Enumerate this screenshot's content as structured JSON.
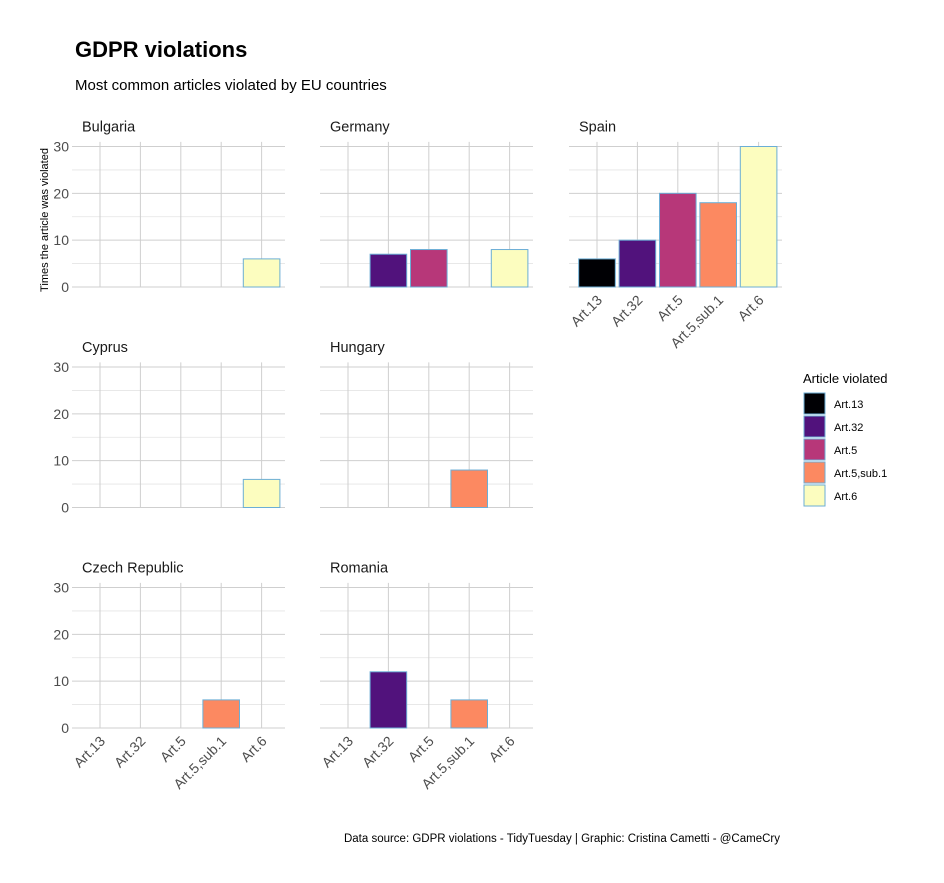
{
  "chart_data": {
    "type": "bar",
    "title": "GDPR violations",
    "subtitle": "Most common articles violated by EU countries",
    "ylabel": "Times the article was violated",
    "xlabel": "",
    "ylim": [
      0,
      31
    ],
    "yticks": [
      0,
      10,
      20,
      30
    ],
    "grid": true,
    "categories": [
      "Art.13",
      "Art.32",
      "Art.5",
      "Art.5,sub.1",
      "Art.6"
    ],
    "colors": {
      "Art.13": "#000004",
      "Art.32": "#51127c",
      "Art.5": "#b73779",
      "Art.5,sub.1": "#fc8961",
      "Art.6": "#fcfdbf"
    },
    "bar_outline_color": "#6baed6",
    "legend": {
      "title": "Article violated",
      "position": "right",
      "items": [
        "Art.13",
        "Art.32",
        "Art.5",
        "Art.5,sub.1",
        "Art.6"
      ]
    },
    "caption": "Data source: GDPR violations - TidyTuesday | Graphic: Cristina Cametti - @CameCry",
    "panels": [
      {
        "country": "Bulgaria",
        "values": {
          "Art.6": 6
        }
      },
      {
        "country": "Germany",
        "values": {
          "Art.32": 7,
          "Art.5": 8,
          "Art.6": 8
        }
      },
      {
        "country": "Spain",
        "values": {
          "Art.13": 6,
          "Art.32": 10,
          "Art.5": 20,
          "Art.5,sub.1": 18,
          "Art.6": 30
        }
      },
      {
        "country": "Cyprus",
        "values": {
          "Art.6": 6
        }
      },
      {
        "country": "Hungary",
        "values": {
          "Art.5,sub.1": 8
        }
      },
      {
        "country": "Czech Republic",
        "values": {
          "Art.5,sub.1": 6
        }
      },
      {
        "country": "Romania",
        "values": {
          "Art.32": 12,
          "Art.5,sub.1": 6
        }
      }
    ]
  }
}
